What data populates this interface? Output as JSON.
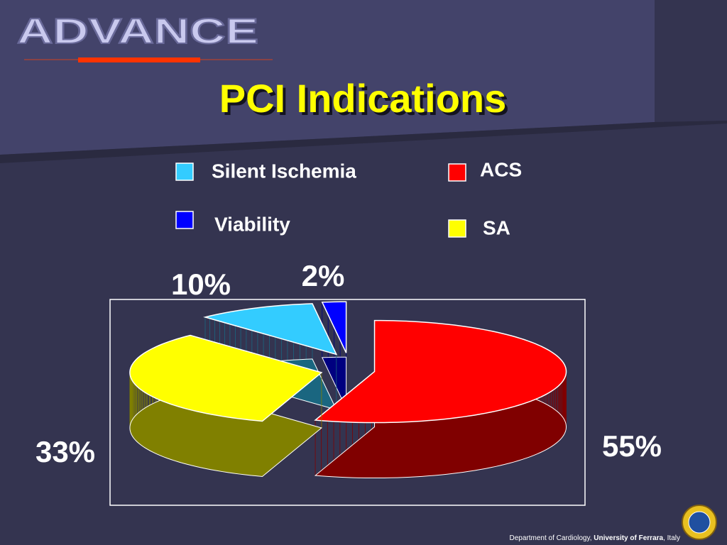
{
  "header": {
    "logo": "ADVANCE"
  },
  "chart_data": {
    "type": "pie",
    "title": "PCI Indications",
    "categories": [
      "Silent Ischemia",
      "ACS",
      "Viability",
      "SA"
    ],
    "values": [
      10,
      55,
      2,
      33
    ],
    "value_labels": [
      "10%",
      "55%",
      "2%",
      "33%"
    ],
    "colors": [
      "#33ccff",
      "#ff0000",
      "#0000ff",
      "#ffff00"
    ]
  },
  "footer": {
    "parts": [
      "Department of Cardiology, ",
      "University of Ferrara",
      ", Italy"
    ]
  }
}
